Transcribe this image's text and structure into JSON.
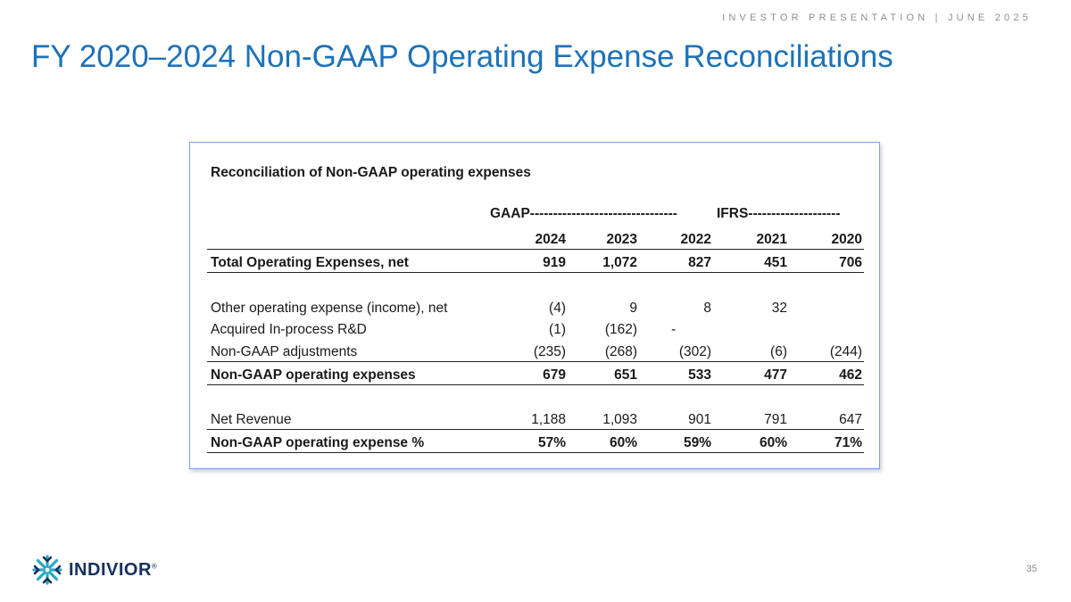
{
  "header": {
    "tagline": "INVESTOR PRESENTATION | JUNE 2025",
    "title": "FY 2020–2024 Non-GAAP Operating Expense Reconciliations"
  },
  "table": {
    "title": "Reconciliation of Non-GAAP operating expenses",
    "gaap_header": "GAAP--------------------------------",
    "ifrs_header": "IFRS--------------------",
    "years": [
      "2024",
      "2023",
      "2022",
      "2021",
      "2020"
    ],
    "rows": {
      "total_opex": {
        "label": "Total Operating Expenses, net",
        "values": [
          "919",
          "1,072",
          "827",
          "451",
          "706"
        ]
      },
      "other_opex": {
        "label": "Other operating expense (income), net",
        "values": [
          "(4)",
          "9",
          "8",
          "32",
          ""
        ]
      },
      "inprocess_rd": {
        "label": "Acquired In-process R&D",
        "values": [
          "(1)",
          "(162)",
          "",
          "",
          ""
        ],
        "dash": "-"
      },
      "nongaap_adj": {
        "label": "Non-GAAP adjustments",
        "values": [
          "(235)",
          "(268)",
          "(302)",
          "(6)",
          "(244)"
        ]
      },
      "nongaap_opex": {
        "label": "Non-GAAP operating expenses",
        "values": [
          "679",
          "651",
          "533",
          "477",
          "462"
        ]
      },
      "net_revenue": {
        "label": "Net Revenue",
        "values": [
          "1,188",
          "1,093",
          "901",
          "791",
          "647"
        ]
      },
      "nongaap_pct": {
        "label": "Non-GAAP operating expense %",
        "values": [
          "57%",
          "60%",
          "59%",
          "60%",
          "71%"
        ]
      }
    }
  },
  "footer": {
    "brand": "INDIVIOR",
    "brand_mark": "®",
    "page_number": "35"
  },
  "colors": {
    "title_blue": "#1d72b8",
    "logo_navy": "#15305f",
    "logo_teal": "#2aa8c4",
    "card_border": "#7da6d3"
  }
}
